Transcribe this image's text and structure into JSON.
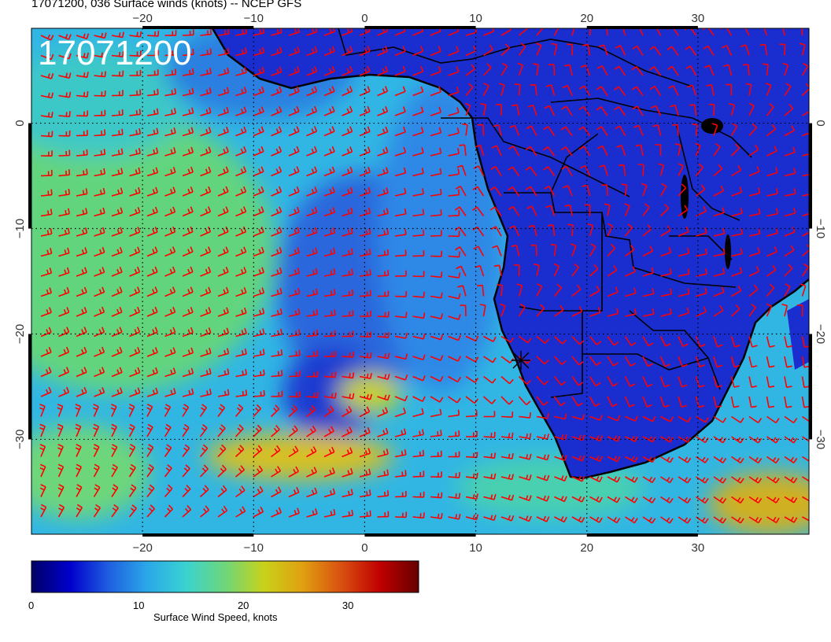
{
  "header": {
    "title": "17071200, 036 Surface winds (knots) -- NCEP GFS",
    "stamp": "17071200"
  },
  "map": {
    "projection": "cylindrical",
    "lon_range": [
      -30,
      40
    ],
    "lat_range": [
      -39,
      9
    ],
    "lon_ticks": [
      -20,
      -10,
      0,
      10,
      20,
      30
    ],
    "lat_ticks": [
      0,
      -10,
      -20,
      -30
    ],
    "lon_tick_labels": [
      "−20",
      "−10",
      "0",
      "10",
      "20",
      "30"
    ],
    "lat_tick_labels": [
      "0",
      "−10",
      "−20",
      "−30"
    ],
    "gridlines": "dotted",
    "barb_color": "#ff0000",
    "coast_color": "#000000"
  },
  "colorbar": {
    "label": "Surface Wind Speed, knots",
    "min": 0,
    "max": 37,
    "ticks": [
      0,
      10,
      20,
      30
    ],
    "tick_labels": [
      "0",
      "10",
      "20",
      "30"
    ],
    "palette": [
      "#000066",
      "#0000cc",
      "#1f5fe0",
      "#2aa8e8",
      "#3ad3d0",
      "#6ed67a",
      "#c8d21a",
      "#e0a010",
      "#d85010",
      "#c00000",
      "#660000"
    ]
  }
}
